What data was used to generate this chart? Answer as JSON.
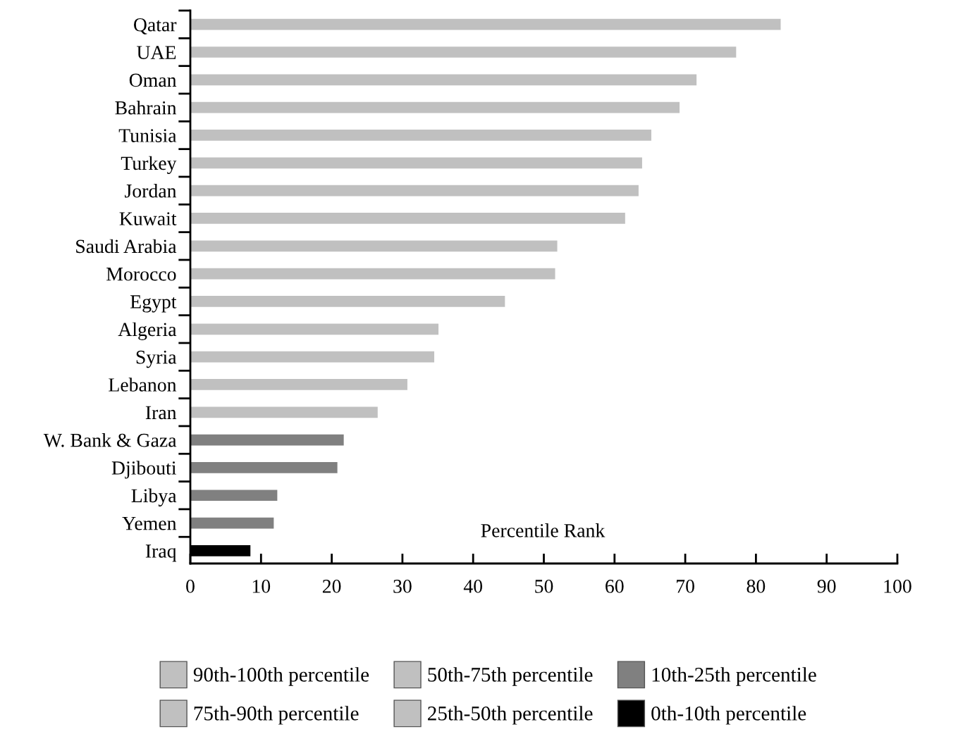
{
  "chart_data": {
    "type": "bar",
    "orientation": "horizontal",
    "xlabel": "Percentile Rank",
    "categories": [
      "Qatar",
      "UAE",
      "Oman",
      "Bahrain",
      "Tunisia",
      "Turkey",
      "Jordan",
      "Kuwait",
      "Saudi Arabia",
      "Morocco",
      "Egypt",
      "Algeria",
      "Syria",
      "Lebanon",
      "Iran",
      "W. Bank & Gaza",
      "Djibouti",
      "Libya",
      "Yemen",
      "Iraq"
    ],
    "series": [
      {
        "name": "90th-100th percentile",
        "color": "#c0c0c0",
        "values": [
          null,
          null,
          null,
          null,
          null,
          null,
          null,
          null,
          null,
          null,
          null,
          null,
          null,
          null,
          null,
          null,
          null,
          null,
          null,
          null
        ]
      },
      {
        "name": "75th-90th percentile",
        "color": "#c0c0c0",
        "values": [
          83.5,
          77.2,
          null,
          null,
          null,
          null,
          null,
          null,
          null,
          null,
          null,
          null,
          null,
          null,
          null,
          null,
          null,
          null,
          null,
          null
        ]
      },
      {
        "name": "50th-75th percentile",
        "color": "#c0c0c0",
        "values": [
          null,
          null,
          71.6,
          69.2,
          65.2,
          63.9,
          63.4,
          61.5,
          51.9,
          51.6,
          null,
          null,
          null,
          null,
          null,
          null,
          null,
          null,
          null,
          null
        ]
      },
      {
        "name": "25th-50th percentile",
        "color": "#c0c0c0",
        "values": [
          null,
          null,
          null,
          null,
          null,
          null,
          null,
          null,
          null,
          null,
          44.5,
          35.1,
          34.5,
          30.7,
          26.5,
          null,
          null,
          null,
          null,
          null
        ]
      },
      {
        "name": "10th-25th percentile",
        "color": "#808080",
        "values": [
          null,
          null,
          null,
          null,
          null,
          null,
          null,
          null,
          null,
          null,
          null,
          null,
          null,
          null,
          null,
          21.7,
          20.8,
          12.3,
          11.8,
          null
        ]
      },
      {
        "name": "0th-10th percentile",
        "color": "#000000",
        "values": [
          null,
          null,
          null,
          null,
          null,
          null,
          null,
          null,
          null,
          null,
          null,
          null,
          null,
          null,
          null,
          null,
          null,
          null,
          null,
          8.5
        ]
      }
    ],
    "xlim": [
      0,
      100
    ],
    "xticks": [
      0,
      10,
      20,
      30,
      40,
      50,
      60,
      70,
      80,
      90,
      100
    ],
    "grid": false,
    "legend": "bottom"
  }
}
